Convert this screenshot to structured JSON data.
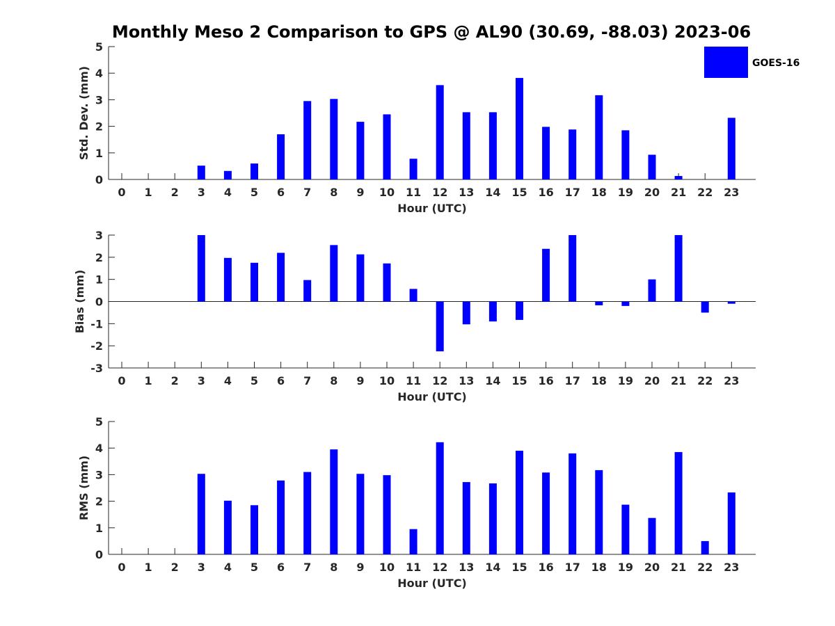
{
  "title": "Monthly Meso 2 Comparison to GPS @ AL90 (30.69, -88.03) 2023-06",
  "colors": {
    "bar": "#0000FF",
    "axis": "#262626"
  },
  "chart_data": [
    {
      "type": "bar",
      "xlabel": "Hour (UTC)",
      "ylabel": "Std. Dev. (mm)",
      "ylim": [
        0,
        5
      ],
      "yticks": [
        0,
        1,
        2,
        3,
        4,
        5
      ],
      "categories": [
        "0",
        "1",
        "2",
        "3",
        "4",
        "5",
        "6",
        "7",
        "8",
        "9",
        "10",
        "11",
        "12",
        "13",
        "14",
        "15",
        "16",
        "17",
        "18",
        "19",
        "20",
        "21",
        "22",
        "23"
      ],
      "series": [
        {
          "name": "GOES-16",
          "values": [
            null,
            null,
            null,
            0.52,
            0.32,
            0.6,
            1.7,
            2.95,
            3.03,
            2.17,
            2.45,
            0.78,
            3.55,
            2.53,
            2.53,
            3.82,
            1.98,
            1.88,
            3.17,
            1.85,
            0.93,
            0.13,
            null,
            2.32
          ]
        }
      ],
      "legend": {
        "position": "top-right",
        "entries": [
          "GOES-16"
        ]
      }
    },
    {
      "type": "bar",
      "xlabel": "Hour (UTC)",
      "ylabel": "Bias (mm)",
      "ylim": [
        -3,
        3
      ],
      "yticks": [
        -3,
        -2,
        -1,
        0,
        1,
        2,
        3
      ],
      "categories": [
        "0",
        "1",
        "2",
        "3",
        "4",
        "5",
        "6",
        "7",
        "8",
        "9",
        "10",
        "11",
        "12",
        "13",
        "14",
        "15",
        "16",
        "17",
        "18",
        "19",
        "20",
        "21",
        "22",
        "23"
      ],
      "series": [
        {
          "name": "GOES-16",
          "values": [
            null,
            null,
            null,
            3.0,
            1.97,
            1.75,
            2.2,
            0.97,
            2.55,
            2.13,
            1.72,
            0.57,
            -2.25,
            -1.03,
            -0.9,
            -0.83,
            2.38,
            3.0,
            -0.17,
            -0.2,
            1.0,
            3.0,
            -0.5,
            -0.1
          ]
        }
      ]
    },
    {
      "type": "bar",
      "xlabel": "Hour (UTC)",
      "ylabel": "RMS (mm)",
      "ylim": [
        0,
        5
      ],
      "yticks": [
        0,
        1,
        2,
        3,
        4,
        5
      ],
      "categories": [
        "0",
        "1",
        "2",
        "3",
        "4",
        "5",
        "6",
        "7",
        "8",
        "9",
        "10",
        "11",
        "12",
        "13",
        "14",
        "15",
        "16",
        "17",
        "18",
        "19",
        "20",
        "21",
        "22",
        "23"
      ],
      "series": [
        {
          "name": "GOES-16",
          "values": [
            null,
            null,
            null,
            3.03,
            2.02,
            1.85,
            2.78,
            3.1,
            3.95,
            3.03,
            2.98,
            0.95,
            4.22,
            2.72,
            2.67,
            3.9,
            3.08,
            3.8,
            3.17,
            1.87,
            1.37,
            3.85,
            0.5,
            2.33
          ]
        }
      ]
    }
  ]
}
